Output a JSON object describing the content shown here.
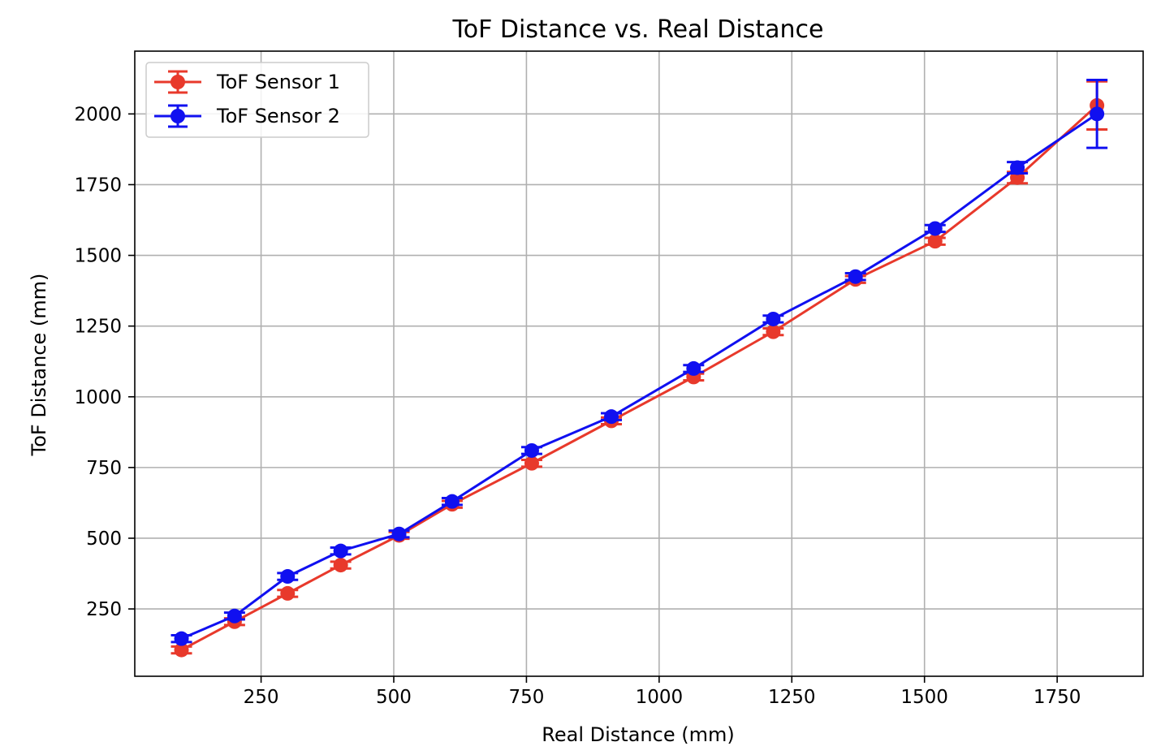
{
  "chart_data": {
    "type": "line",
    "title": "ToF Distance vs. Real Distance",
    "xlabel": "Real Distance (mm)",
    "ylabel": "ToF Distance (mm)",
    "xlim": [
      12,
      1912
    ],
    "ylim": [
      12,
      2222
    ],
    "xticks": [
      250,
      500,
      750,
      1000,
      1250,
      1500,
      1750
    ],
    "yticks": [
      250,
      500,
      750,
      1000,
      1250,
      1500,
      1750,
      2000
    ],
    "grid": true,
    "legend_position": "top-left",
    "x": [
      100,
      200,
      300,
      400,
      510,
      610,
      760,
      910,
      1065,
      1215,
      1370,
      1520,
      1675,
      1825
    ],
    "series": [
      {
        "name": "ToF Sensor 1",
        "color": "#e8392b",
        "values": [
          105,
          205,
          305,
          405,
          510,
          620,
          765,
          915,
          1070,
          1230,
          1415,
          1550,
          1775,
          2030
        ],
        "errors": [
          12,
          12,
          12,
          12,
          12,
          12,
          12,
          12,
          12,
          12,
          12,
          12,
          20,
          85
        ]
      },
      {
        "name": "ToF Sensor 2",
        "color": "#1010f0",
        "values": [
          145,
          225,
          365,
          455,
          515,
          630,
          810,
          930,
          1100,
          1275,
          1425,
          1595,
          1810,
          2000
        ],
        "errors": [
          12,
          12,
          12,
          12,
          12,
          12,
          12,
          12,
          12,
          12,
          12,
          12,
          20,
          120
        ]
      }
    ]
  }
}
